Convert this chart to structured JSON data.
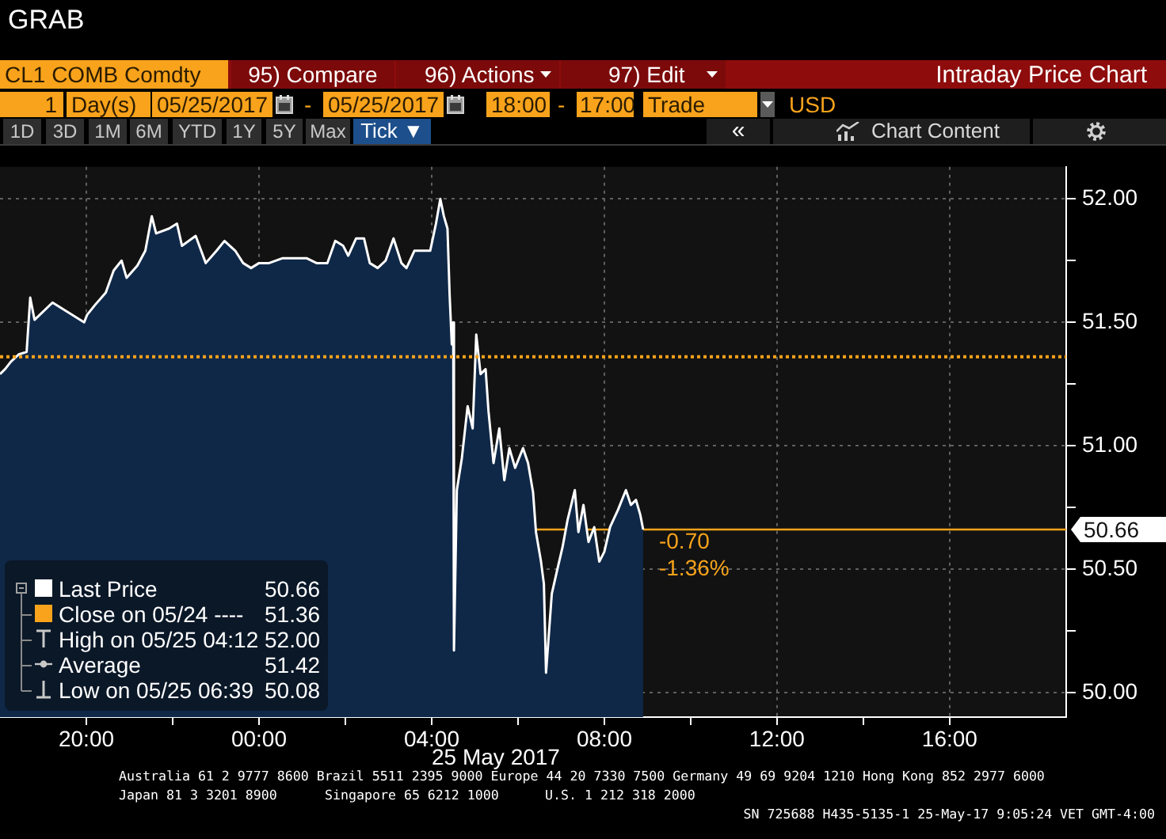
{
  "chart_data": {
    "type": "area",
    "title": "Intraday Price Chart",
    "xlabel": "25 May 2017",
    "x": [
      "2017-05-24T18:00",
      "2017-05-24T18:07",
      "2017-05-24T18:15",
      "2017-05-24T18:26",
      "2017-05-24T18:37",
      "2017-05-24T18:42",
      "2017-05-24T18:48",
      "2017-05-24T19:13",
      "2017-05-24T19:35",
      "2017-05-24T19:57",
      "2017-05-24T20:01",
      "2017-05-24T20:12",
      "2017-05-24T20:27",
      "2017-05-24T20:38",
      "2017-05-24T20:49",
      "2017-05-24T20:56",
      "2017-05-24T21:11",
      "2017-05-24T21:22",
      "2017-05-24T21:31",
      "2017-05-24T21:37",
      "2017-05-24T21:55",
      "2017-05-24T22:06",
      "2017-05-24T22:13",
      "2017-05-24T22:32",
      "2017-05-24T22:46",
      "2017-05-24T23:01",
      "2017-05-24T23:12",
      "2017-05-24T23:27",
      "2017-05-24T23:38",
      "2017-05-24T23:49",
      "2017-05-25T00:00",
      "2017-05-25T00:14",
      "2017-05-25T00:33",
      "2017-05-25T00:47",
      "2017-05-25T01:06",
      "2017-05-25T01:20",
      "2017-05-25T01:35",
      "2017-05-25T01:46",
      "2017-05-25T01:57",
      "2017-05-25T02:04",
      "2017-05-25T02:15",
      "2017-05-25T02:26",
      "2017-05-25T02:34",
      "2017-05-25T02:45",
      "2017-05-25T02:56",
      "2017-05-25T03:07",
      "2017-05-25T03:18",
      "2017-05-25T03:25",
      "2017-05-25T03:36",
      "2017-05-25T03:47",
      "2017-05-25T03:58",
      "2017-05-25T04:06",
      "2017-05-25T04:12",
      "2017-05-25T04:17",
      "2017-05-25T04:22",
      "2017-05-25T04:25",
      "2017-05-25T04:28",
      "2017-05-25T04:30",
      "2017-05-25T04:31",
      "2017-05-25T04:35",
      "2017-05-25T04:42",
      "2017-05-25T04:50",
      "2017-05-25T04:57",
      "2017-05-25T05:02",
      "2017-05-25T05:08",
      "2017-05-25T05:15",
      "2017-05-25T05:19",
      "2017-05-25T05:26",
      "2017-05-25T05:34",
      "2017-05-25T05:41",
      "2017-05-25T05:48",
      "2017-05-25T05:56",
      "2017-05-25T06:07",
      "2017-05-25T06:14",
      "2017-05-25T06:21",
      "2017-05-25T06:25",
      "2017-05-25T06:32",
      "2017-05-25T06:36",
      "2017-05-25T06:39",
      "2017-05-25T06:47",
      "2017-05-25T06:54",
      "2017-05-25T07:02",
      "2017-05-25T07:09",
      "2017-05-25T07:19",
      "2017-05-25T07:24",
      "2017-05-25T07:31",
      "2017-05-25T07:38",
      "2017-05-25T07:46",
      "2017-05-25T07:53",
      "2017-05-25T08:00",
      "2017-05-25T08:08",
      "2017-05-25T08:19",
      "2017-05-25T08:30",
      "2017-05-25T08:37",
      "2017-05-25T08:44",
      "2017-05-25T08:50",
      "2017-05-25T08:54"
    ],
    "series": [
      {
        "name": "Last Price",
        "color": "#ffffff",
        "values": [
          51.29,
          51.31,
          51.34,
          51.37,
          51.38,
          51.6,
          51.51,
          51.58,
          51.54,
          51.5,
          51.53,
          51.57,
          51.62,
          51.71,
          51.75,
          51.68,
          51.73,
          51.79,
          51.93,
          51.86,
          51.88,
          51.9,
          51.81,
          51.85,
          51.74,
          51.79,
          51.83,
          51.79,
          51.74,
          51.72,
          51.74,
          51.74,
          51.76,
          51.76,
          51.76,
          51.74,
          51.74,
          51.83,
          51.81,
          51.77,
          51.84,
          51.84,
          51.74,
          51.72,
          51.75,
          51.84,
          51.74,
          51.72,
          51.79,
          51.79,
          51.79,
          51.9,
          52.0,
          51.93,
          51.88,
          51.61,
          51.41,
          51.5,
          50.17,
          50.82,
          50.95,
          51.16,
          51.07,
          51.45,
          51.29,
          51.31,
          51.14,
          50.93,
          51.07,
          50.86,
          50.99,
          50.91,
          50.99,
          50.93,
          50.81,
          50.65,
          50.53,
          50.44,
          50.08,
          50.4,
          50.49,
          50.59,
          50.7,
          50.82,
          50.65,
          50.76,
          50.61,
          50.67,
          50.53,
          50.57,
          50.67,
          50.74,
          50.82,
          50.76,
          50.78,
          50.72,
          50.66
        ]
      },
      {
        "name": "Close on 05/24 ----",
        "type": "line",
        "color": "#f8a31b",
        "line_style": "dotted",
        "x": [
          "2017-05-24T18:00",
          "2017-05-25T18:42"
        ],
        "values": [
          51.36,
          51.36
        ]
      }
    ],
    "xlim": [
      "2017-05-24T18:00",
      "2017-05-25T18:42"
    ],
    "xticks": [
      {
        "value": "2017-05-24T20:00",
        "label": "20:00"
      },
      {
        "value": "2017-05-24T22:00",
        "label": null
      },
      {
        "value": "2017-05-25T00:00",
        "label": "00:00"
      },
      {
        "value": "2017-05-25T02:00",
        "label": null
      },
      {
        "value": "2017-05-25T04:00",
        "label": "04:00"
      },
      {
        "value": "2017-05-25T06:00",
        "label": null
      },
      {
        "value": "2017-05-25T08:00",
        "label": "08:00"
      },
      {
        "value": "2017-05-25T10:00",
        "label": null
      },
      {
        "value": "2017-05-25T12:00",
        "label": "12:00"
      },
      {
        "value": "2017-05-25T14:00",
        "label": null
      },
      {
        "value": "2017-05-25T16:00",
        "label": "16:00"
      }
    ],
    "ylim": [
      49.9,
      52.13
    ],
    "yticks": [
      {
        "value": 50,
        "label": "50.00"
      },
      {
        "value": 50.25,
        "label": null
      },
      {
        "value": 50.5,
        "label": "50.50"
      },
      {
        "value": 50.75,
        "label": null
      },
      {
        "value": 51,
        "label": "51.00"
      },
      {
        "value": 51.25,
        "label": null
      },
      {
        "value": 51.5,
        "label": "51.50"
      },
      {
        "value": 51.75,
        "label": null
      },
      {
        "value": 52,
        "label": "52.00"
      }
    ],
    "ref_lines": [
      {
        "axis": "y",
        "value": 50.66,
        "label": "50.66",
        "color": "#f8a31b",
        "line_style": "solid"
      }
    ],
    "grid": true,
    "legend": "bottom left",
    "annotations": [
      "GRAB",
      "CL1 COMB Comdty",
      "95) Compare",
      "96) Actions",
      "97) Edit",
      "1",
      "Day(s)",
      "05/25/2017",
      "-",
      "05/25/2017",
      "18:00",
      "-",
      "17:00",
      "Trade",
      "USD",
      "1D",
      "3D",
      "1M",
      "6M",
      "YTD",
      "1Y",
      "5Y",
      "Max",
      "Tick ▼",
      "«",
      "Chart Content",
      "50.66",
      "51.36",
      "High on 05/25 04:12",
      "52.00",
      "Average",
      "51.42",
      "Low on 05/25 06:39",
      "50.08",
      {
        "text": "-0.70",
        "x": "2017-05-25T08:54",
        "y": 50.66
      },
      {
        "text": "-1.36%",
        "x": "2017-05-25T08:54",
        "y": 50.66
      },
      "Australia 61 2 9777 8600 Brazil 5511 2395 9000 Europe 44 20 7330 7500 Germany 49 69 9204 1210 Hong Kong 852 2977 6000",
      "Japan 81 3 3201 8900",
      "Singapore 65 6212 1000",
      "U.S. 1 212 318 2000",
      "SN 725688 H435-5135-1 25-May-17 9:05:24 VET GMT-4:00"
    ]
  }
}
